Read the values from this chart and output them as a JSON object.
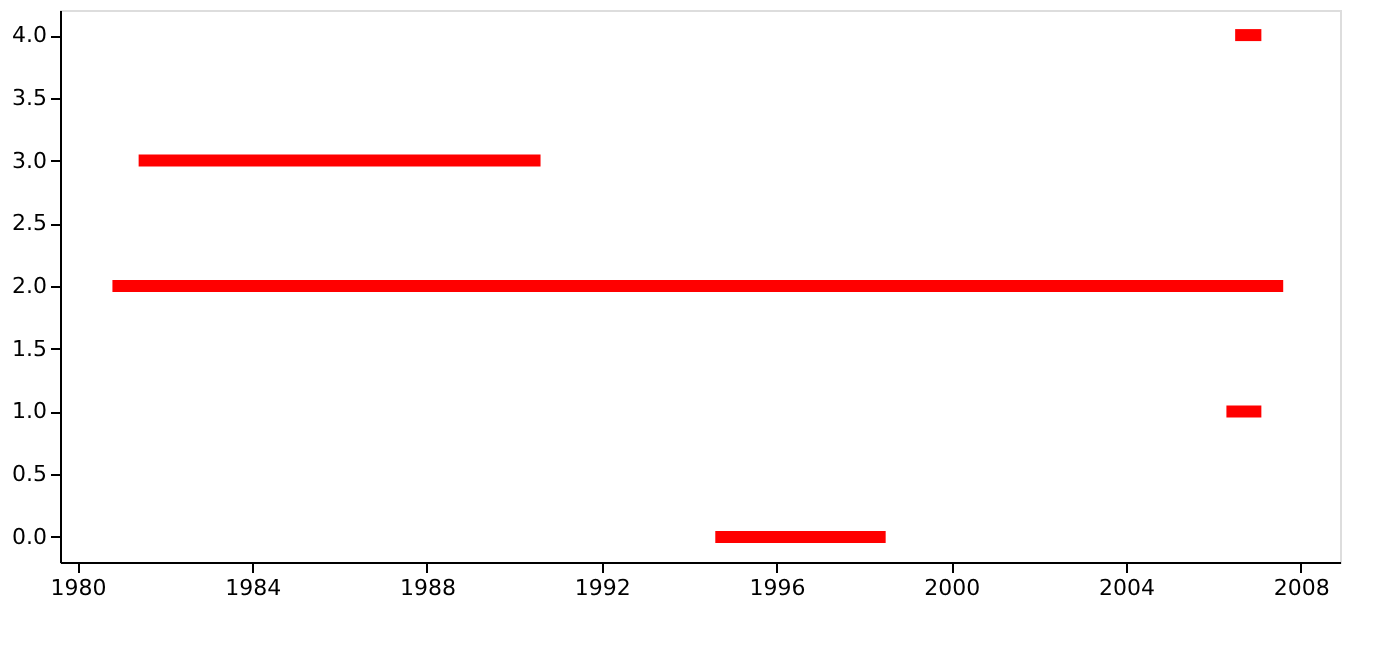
{
  "chart_data": {
    "type": "line",
    "xlim": [
      1979.6,
      2008.9
    ],
    "xticks": [
      1980,
      1984,
      1988,
      1992,
      1996,
      2000,
      2004,
      2008
    ],
    "ylim": [
      -0.2,
      4.2
    ],
    "yticks": [
      {
        "value": 0,
        "label": "0.0"
      },
      {
        "value": 0.5,
        "label": "0.5"
      },
      {
        "value": 1,
        "label": "1.0"
      },
      {
        "value": 1.5,
        "label": "1.5"
      },
      {
        "value": 2,
        "label": "2.0"
      },
      {
        "value": 2.5,
        "label": "2.5"
      },
      {
        "value": 3,
        "label": "3.0"
      },
      {
        "value": 3.5,
        "label": "3.5"
      },
      {
        "value": 4,
        "label": "4.0"
      }
    ],
    "grid": false,
    "legend": false,
    "marker": "none",
    "line_style": "solid",
    "series": [
      {
        "color": "#ff0000",
        "x": [
          1994.6,
          1998.5
        ],
        "values": [
          0,
          0
        ]
      },
      {
        "color": "#ff0000",
        "x": [
          2006.3,
          2007.1
        ],
        "values": [
          1,
          1
        ]
      },
      {
        "color": "#ff0000",
        "x": [
          1980.8,
          2007.6
        ],
        "values": [
          2,
          2
        ]
      },
      {
        "color": "#ff0000",
        "x": [
          1981.4,
          1990.6
        ],
        "values": [
          3,
          3
        ]
      },
      {
        "color": "#ff0000",
        "x": [
          2006.5,
          2007.1
        ],
        "values": [
          4,
          4
        ]
      }
    ]
  }
}
